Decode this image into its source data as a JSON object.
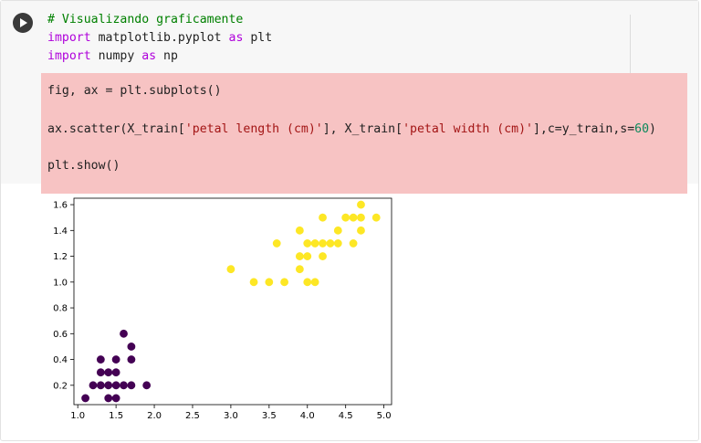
{
  "cell": {
    "run_button": "run-cell",
    "lines": [
      [
        {
          "t": "# Visualizando graficamente",
          "c": "c-comment"
        }
      ],
      [
        {
          "t": "import",
          "c": "c-kw"
        },
        {
          "t": " matplotlib.pyplot ",
          "c": ""
        },
        {
          "t": "as",
          "c": "c-kw"
        },
        {
          "t": " plt",
          "c": ""
        }
      ],
      [
        {
          "t": "import",
          "c": "c-kw"
        },
        {
          "t": " numpy ",
          "c": ""
        },
        {
          "t": "as",
          "c": "c-kw"
        },
        {
          "t": " np",
          "c": ""
        }
      ]
    ],
    "highlighted_lines": [
      [
        {
          "t": "fig, ax = plt.subplots()",
          "c": ""
        }
      ],
      [
        {
          "t": "ax.scatter(X_train[",
          "c": ""
        },
        {
          "t": "'petal length (cm)'",
          "c": "c-str"
        },
        {
          "t": "], X_train[",
          "c": ""
        },
        {
          "t": "'petal width (cm)'",
          "c": "c-str"
        },
        {
          "t": "],c=y_train,s=",
          "c": ""
        },
        {
          "t": "60",
          "c": "c-num"
        },
        {
          "t": ")",
          "c": ""
        }
      ],
      [
        {
          "t": "plt.show()",
          "c": ""
        }
      ]
    ]
  },
  "chart_data": {
    "type": "scatter",
    "xlim": [
      0.95,
      5.1
    ],
    "ylim": [
      0.05,
      1.65
    ],
    "xticks": [
      "1.0",
      "1.5",
      "2.0",
      "2.5",
      "3.0",
      "3.5",
      "4.0",
      "4.5",
      "5.0"
    ],
    "yticks": [
      "0.2",
      "0.4",
      "0.6",
      "0.8",
      "1.0",
      "1.2",
      "1.4",
      "1.6"
    ],
    "colors": {
      "class0": "#440154",
      "class1": "#fde725"
    },
    "series": [
      {
        "class": 0,
        "points": [
          [
            1.1,
            0.1
          ],
          [
            1.2,
            0.2
          ],
          [
            1.3,
            0.2
          ],
          [
            1.3,
            0.3
          ],
          [
            1.3,
            0.4
          ],
          [
            1.4,
            0.1
          ],
          [
            1.4,
            0.2
          ],
          [
            1.4,
            0.3
          ],
          [
            1.5,
            0.1
          ],
          [
            1.5,
            0.2
          ],
          [
            1.5,
            0.3
          ],
          [
            1.5,
            0.4
          ],
          [
            1.6,
            0.2
          ],
          [
            1.6,
            0.6
          ],
          [
            1.7,
            0.2
          ],
          [
            1.7,
            0.4
          ],
          [
            1.7,
            0.5
          ],
          [
            1.9,
            0.2
          ]
        ]
      },
      {
        "class": 1,
        "points": [
          [
            3.0,
            1.1
          ],
          [
            3.3,
            1.0
          ],
          [
            3.5,
            1.0
          ],
          [
            3.6,
            1.3
          ],
          [
            3.7,
            1.0
          ],
          [
            3.9,
            1.1
          ],
          [
            3.9,
            1.2
          ],
          [
            3.9,
            1.4
          ],
          [
            4.0,
            1.0
          ],
          [
            4.0,
            1.2
          ],
          [
            4.0,
            1.3
          ],
          [
            4.1,
            1.0
          ],
          [
            4.1,
            1.3
          ],
          [
            4.2,
            1.2
          ],
          [
            4.2,
            1.3
          ],
          [
            4.2,
            1.5
          ],
          [
            4.3,
            1.3
          ],
          [
            4.4,
            1.3
          ],
          [
            4.4,
            1.4
          ],
          [
            4.5,
            1.5
          ],
          [
            4.6,
            1.3
          ],
          [
            4.6,
            1.5
          ],
          [
            4.7,
            1.4
          ],
          [
            4.7,
            1.5
          ],
          [
            4.7,
            1.6
          ],
          [
            4.9,
            1.5
          ]
        ]
      }
    ]
  }
}
